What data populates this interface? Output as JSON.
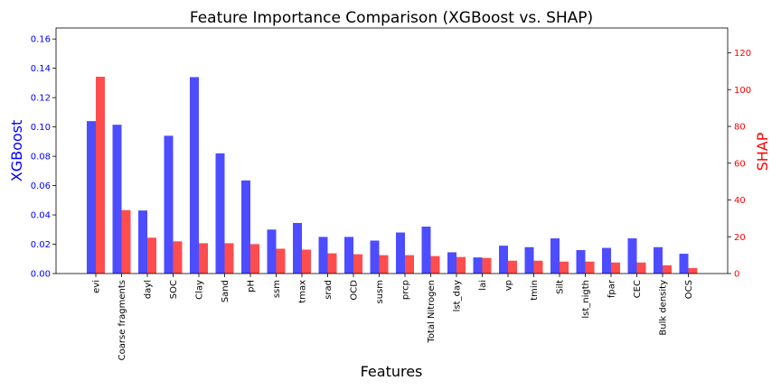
{
  "chart_data": {
    "type": "bar",
    "title": "Feature Importance Comparison (XGBoost vs. SHAP)",
    "xlabel": "Features",
    "categories": [
      "evi",
      "Coarse fragments",
      "dayl",
      "SOC",
      "Clay",
      "Sand",
      "pH",
      "ssm",
      "tmax",
      "srad",
      "OCD",
      "susm",
      "prcp",
      "Total Nitrogen",
      "lst_day",
      "lai",
      "vp",
      "tmin",
      "Silt",
      "lst_nigth",
      "fpar",
      "CEC",
      "Bulk density",
      "OCS"
    ],
    "series": [
      {
        "name": "XGBoost",
        "axis": "left",
        "color": "#4d4dff",
        "values": [
          0.104,
          0.1015,
          0.043,
          0.094,
          0.134,
          0.082,
          0.0635,
          0.03,
          0.0345,
          0.025,
          0.025,
          0.0225,
          0.028,
          0.032,
          0.0145,
          0.011,
          0.019,
          0.018,
          0.024,
          0.016,
          0.0175,
          0.024,
          0.018,
          0.0135
        ]
      },
      {
        "name": "SHAP",
        "axis": "right",
        "color": "#ff4d4d",
        "values": [
          107,
          34.5,
          19.5,
          17.5,
          16.5,
          16.5,
          16,
          13.5,
          13,
          11,
          10.5,
          10,
          10,
          9.5,
          9,
          8.5,
          7,
          7,
          6.5,
          6.5,
          6,
          6,
          4.5,
          3
        ]
      }
    ],
    "left_axis": {
      "label": "XGBoost",
      "color": "#0000ff",
      "ylim": [
        0,
        0.1675
      ],
      "ticks": [
        "0.00",
        "0.02",
        "0.04",
        "0.06",
        "0.08",
        "0.10",
        "0.12",
        "0.14",
        "0.16"
      ]
    },
    "right_axis": {
      "label": "SHAP",
      "color": "#ff0000",
      "ylim": [
        0,
        133.5
      ],
      "ticks": [
        "0",
        "20",
        "40",
        "60",
        "80",
        "100",
        "120"
      ]
    },
    "grid": false,
    "legend": "none"
  }
}
